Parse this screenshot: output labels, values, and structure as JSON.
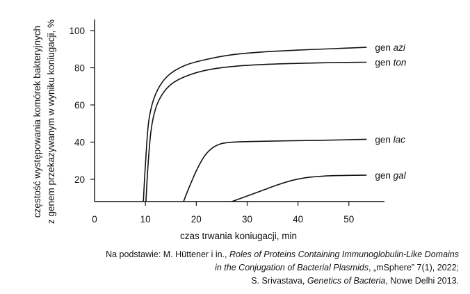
{
  "chart_data": {
    "type": "line",
    "xlabel": "czas trwania koniugacji, min",
    "ylabel": "częstość występowania komórek bakteryjnych z genem przekazywanym w wyniku koniugacji, %",
    "ylabel_lines": [
      "częstość występowania komórek bakteryjnych",
      "z genem przekazywanym w wyniku koniugacji, %"
    ],
    "xlim": [
      0,
      57
    ],
    "ylim": [
      8,
      106
    ],
    "x_ticks": [
      0,
      10,
      20,
      30,
      40,
      50
    ],
    "y_ticks": [
      20,
      40,
      60,
      80,
      100
    ],
    "grid": false,
    "legend": "labels at line ends",
    "series": [
      {
        "name": "azi",
        "label_prefix": "gen ",
        "label_gene": "azi",
        "x": [
          9.6,
          10,
          10.6,
          11.5,
          13,
          15,
          18,
          22,
          27,
          33,
          40,
          47,
          53.5
        ],
        "y": [
          8,
          28,
          50,
          62,
          71,
          77,
          81.5,
          84.5,
          87,
          88.5,
          89.5,
          90.3,
          91
        ]
      },
      {
        "name": "ton",
        "label_prefix": "gen ",
        "label_gene": "ton",
        "x": [
          10.1,
          10.5,
          11.1,
          12,
          13.5,
          15.5,
          18.5,
          22.5,
          27.5,
          33.5,
          40.5,
          47,
          53.5
        ],
        "y": [
          8,
          27,
          46,
          58,
          66.5,
          72,
          76,
          79,
          80.8,
          81.8,
          82.4,
          82.8,
          83
        ]
      },
      {
        "name": "lac",
        "label_prefix": "gen ",
        "label_gene": "lac",
        "x": [
          17.5,
          18.5,
          20,
          21.5,
          23,
          24.5,
          26,
          28,
          32,
          38,
          45,
          53.5
        ],
        "y": [
          8,
          15,
          24.5,
          32,
          36.5,
          38.8,
          39.7,
          40.1,
          40.4,
          40.7,
          41,
          41.5
        ]
      },
      {
        "name": "gal",
        "label_prefix": "gen ",
        "label_gene": "gal",
        "x": [
          27,
          30,
          33,
          36,
          39,
          42,
          45,
          48,
          53.5
        ],
        "y": [
          8,
          11,
          14,
          17,
          19.5,
          21,
          21.7,
          22,
          22.2
        ]
      }
    ]
  },
  "source": {
    "line1_prefix": "Na podstawie: M. Hüttener i in., ",
    "line1_title": "Roles of Proteins Containing Immunoglobulin-Like Domains",
    "line2_title": "in the Conjugation of Bacterial Plasmids",
    "line2_suffix": ", „mSphere” 7(1), 2022;",
    "line3_prefix": "S. Srivastava, ",
    "line3_title": "Genetics of Bacteria",
    "line3_suffix": ", Nowe Delhi 2013."
  }
}
